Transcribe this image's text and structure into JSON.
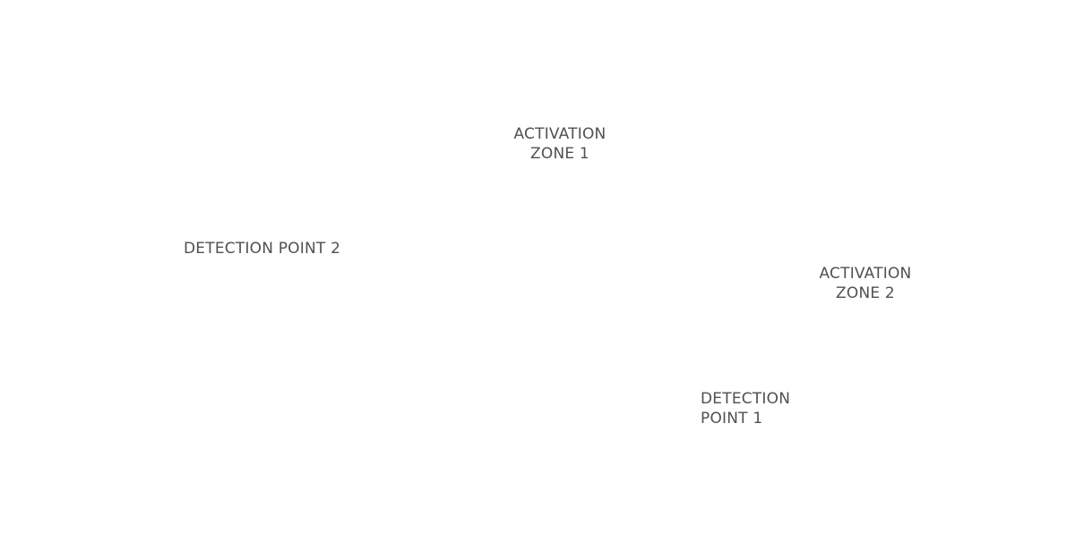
{
  "labels": {
    "activation_zone_1": {
      "line1": "ACTIVATION",
      "line2": "ZONE 1"
    },
    "detection_point_2": {
      "line1": "DETECTION POINT 2"
    },
    "activation_zone_2": {
      "line1": "ACTIVATION",
      "line2": "ZONE 2"
    },
    "detection_point_1": {
      "line1": "DETECTION",
      "line2": "POINT 1"
    }
  },
  "colors": {
    "background": "#ffffff",
    "label_text": "#505055"
  }
}
